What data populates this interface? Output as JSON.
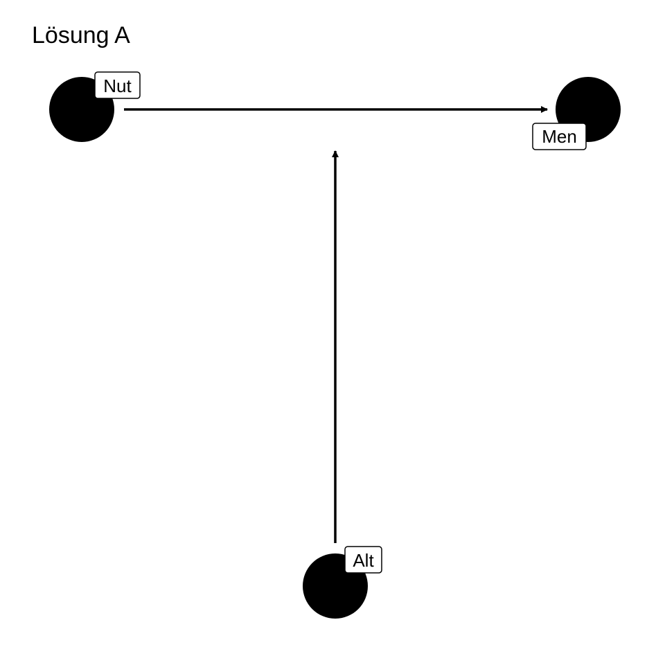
{
  "title": "Lösung A",
  "colors": {
    "node_fill": "#000000",
    "edge_stroke": "#000000",
    "label_background": "#ffffff",
    "label_border": "#000000",
    "text": "#000000",
    "background": "#ffffff"
  },
  "nodes": [
    {
      "id": "nut",
      "label": "Nut"
    },
    {
      "id": "men",
      "label": "Men"
    },
    {
      "id": "alt",
      "label": "Alt"
    }
  ],
  "edges": [
    {
      "from": "nut",
      "to": "men"
    },
    {
      "from": "alt",
      "to": "nut-men"
    }
  ]
}
